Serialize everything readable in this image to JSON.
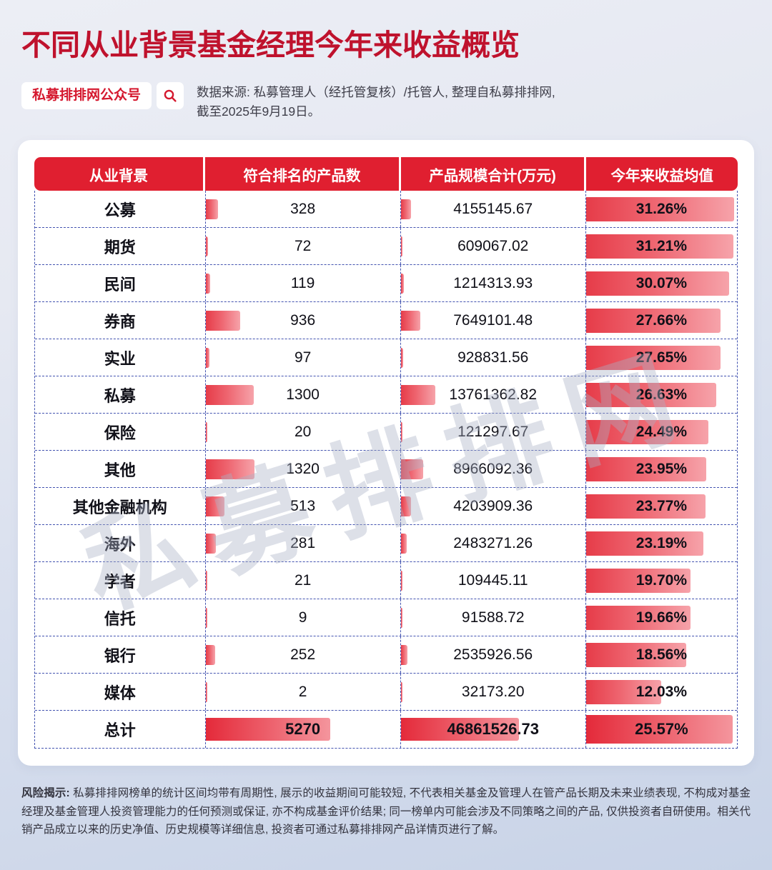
{
  "page": {
    "title": "不同从业背景基金经理今年来收益概览",
    "badge": "私募排排网公众号",
    "source_line1": "数据来源: 私募管理人（经托管复核）/托管人, 整理自私募排排网,",
    "source_line2": "截至2025年9月19日。",
    "watermark": "私募排排网",
    "risk_label": "风险揭示:",
    "risk_body": " 私募排排网榜单的统计区间均带有周期性, 展示的收益期间可能较短, 不代表相关基金及管理人在管产品长期及未来业绩表现, 不构成对基金经理及基金管理人投资管理能力的任何预测或保证, 亦不构成基金评价结果; 同一榜单内可能会涉及不同策略之间的产品, 仅供投资者自研使用。相关代销产品成立以来的历史净值、历史规模等详细信息, 投资者可通过私募排排网产品详情页进行了解。"
  },
  "colors": {
    "title_red": "#bf122d",
    "header_red": "#e01f30",
    "bar_gradient_start": "#e63c49",
    "bar_gradient_end": "#f6a3aa",
    "dash_blue": "#4353b0"
  },
  "chart_data": {
    "type": "table",
    "title": "不同从业背景基金经理今年来收益概览",
    "columns": [
      "从业背景",
      "符合排名的产品数",
      "产品规模合计(万元)",
      "今年来收益均值"
    ],
    "rows": [
      {
        "background": "公募",
        "count": 328,
        "scale": "4155145.67",
        "return_pct": "31.26%"
      },
      {
        "background": "期货",
        "count": 72,
        "scale": "609067.02",
        "return_pct": "31.21%"
      },
      {
        "background": "民间",
        "count": 119,
        "scale": "1214313.93",
        "return_pct": "30.07%"
      },
      {
        "background": "券商",
        "count": 936,
        "scale": "7649101.48",
        "return_pct": "27.66%"
      },
      {
        "background": "实业",
        "count": 97,
        "scale": "928831.56",
        "return_pct": "27.65%"
      },
      {
        "background": "私募",
        "count": 1300,
        "scale": "13761362.82",
        "return_pct": "26.63%"
      },
      {
        "background": "保险",
        "count": 20,
        "scale": "121297.67",
        "return_pct": "24.49%"
      },
      {
        "background": "其他",
        "count": 1320,
        "scale": "8966092.36",
        "return_pct": "23.95%"
      },
      {
        "background": "其他金融机构",
        "count": 513,
        "scale": "4203909.36",
        "return_pct": "23.77%"
      },
      {
        "background": "海外",
        "count": 281,
        "scale": "2483271.26",
        "return_pct": "23.19%"
      },
      {
        "background": "学者",
        "count": 21,
        "scale": "109445.11",
        "return_pct": "19.70%"
      },
      {
        "background": "信托",
        "count": 9,
        "scale": "91588.72",
        "return_pct": "19.66%"
      },
      {
        "background": "银行",
        "count": 252,
        "scale": "2535926.56",
        "return_pct": "18.56%"
      },
      {
        "background": "媒体",
        "count": 2,
        "scale": "32173.20",
        "return_pct": "12.03%"
      },
      {
        "background": "总计",
        "count": 5270,
        "scale": "46861526.73",
        "return_pct": "25.57%",
        "is_total": true
      }
    ]
  }
}
